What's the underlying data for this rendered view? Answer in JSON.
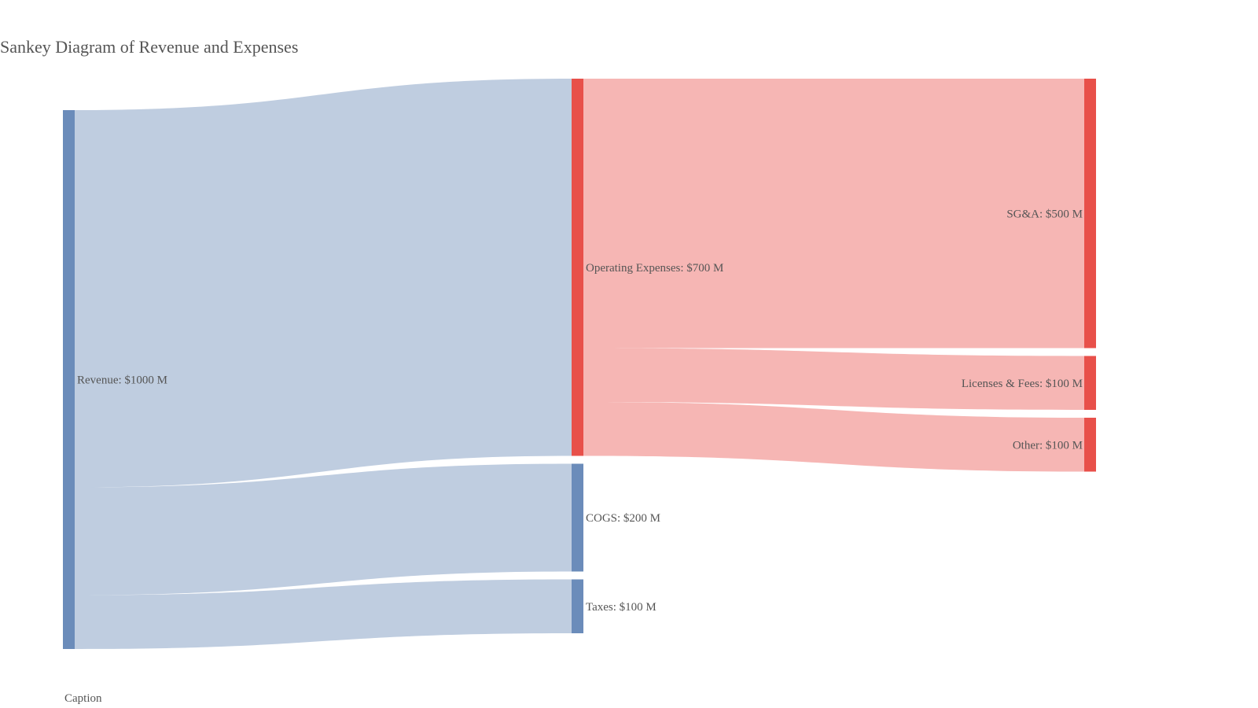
{
  "title": "Sankey Diagram of Revenue and Expenses",
  "caption": "Caption",
  "colors": {
    "income": "#6b8cba",
    "expense": "#e8504a",
    "income_link": "#bfcde0",
    "expense_link": "#f6b6b4",
    "text": "#555555"
  },
  "chart_data": {
    "type": "sankey",
    "unit": "$M",
    "nodes": [
      {
        "id": "revenue",
        "label": "Revenue: $1000 M",
        "value": 1000,
        "column": 0,
        "group": "income"
      },
      {
        "id": "opex",
        "label": "Operating Expenses: $700 M",
        "value": 700,
        "column": 1,
        "group": "expense"
      },
      {
        "id": "cogs",
        "label": "COGS: $200 M",
        "value": 200,
        "column": 1,
        "group": "income"
      },
      {
        "id": "taxes",
        "label": "Taxes: $100 M",
        "value": 100,
        "column": 1,
        "group": "income"
      },
      {
        "id": "sga",
        "label": "SG&A: $500 M",
        "value": 500,
        "column": 2,
        "group": "expense"
      },
      {
        "id": "licenses",
        "label": "Licenses & Fees: $100 M",
        "value": 100,
        "column": 2,
        "group": "expense"
      },
      {
        "id": "other",
        "label": "Other: $100 M",
        "value": 100,
        "column": 2,
        "group": "expense"
      }
    ],
    "links": [
      {
        "source": "revenue",
        "target": "opex",
        "value": 700
      },
      {
        "source": "revenue",
        "target": "cogs",
        "value": 200
      },
      {
        "source": "revenue",
        "target": "taxes",
        "value": 100
      },
      {
        "source": "opex",
        "target": "sga",
        "value": 500
      },
      {
        "source": "opex",
        "target": "licenses",
        "value": 100
      },
      {
        "source": "opex",
        "target": "other",
        "value": 100
      }
    ]
  }
}
